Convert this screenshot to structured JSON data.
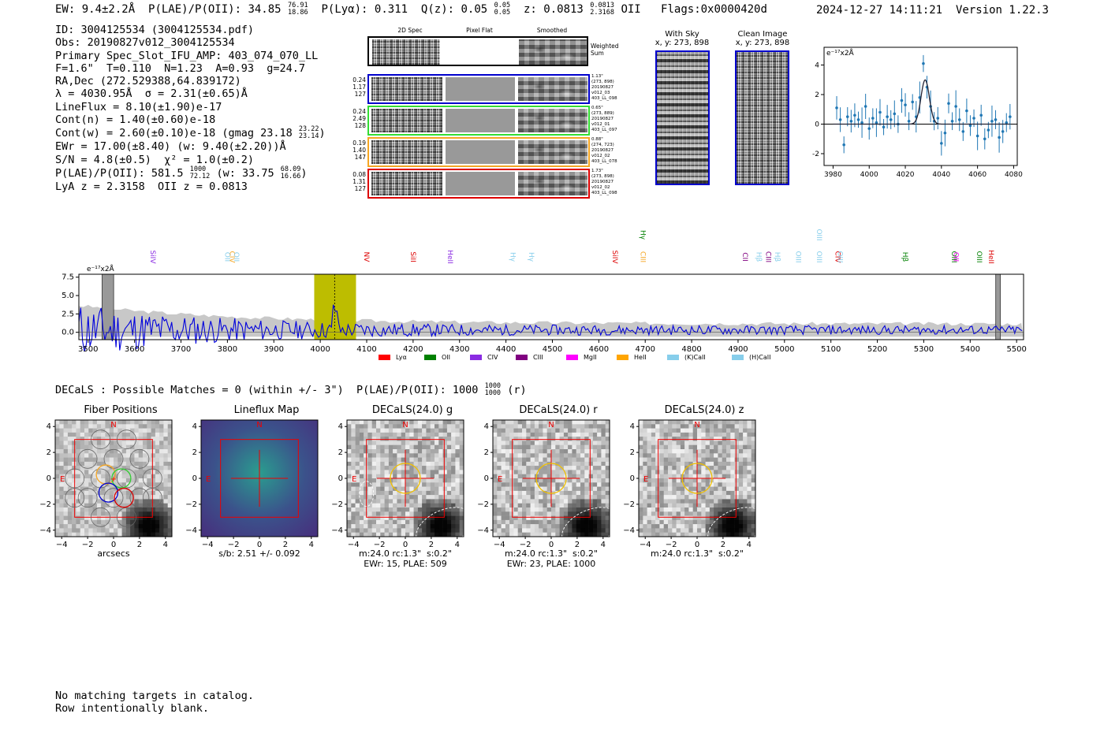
{
  "header": {
    "ew": "EW: 9.4±2.2Å",
    "plae": "P(LAE)/P(OII): 34.85",
    "plae_hi": "76.91",
    "plae_lo": "18.86",
    "plya": "P(Lyα): 0.311",
    "q": "Q(z): 0.05",
    "q_hi": "0.05",
    "q_lo": "0.05",
    "z": "z: 0.0813",
    "z_hi": "0.0813",
    "z_lo": "2.3168",
    "z_line": "OII",
    "flags": "Flags:0x0000420d",
    "datetime": "2024-12-27 14:11:21",
    "version": "Version 1.22.3"
  },
  "info": {
    "id": "ID: 3004125534 (3004125534.pdf)",
    "obs": "Obs: 20190827v012_3004125534",
    "primary": "Primary Spec_Slot_IFU_AMP: 403_074_070_LL",
    "params": "F=1.6\"  T=0.110  N=1.23  A=0.93  g=24.7",
    "radec": "RA,Dec (272.529388,64.839172)",
    "lambda": "λ = 4030.95Å  σ = 2.31(±0.65)Å",
    "lineflux": "LineFlux = 8.10(±1.90)e-17",
    "contn": "Cont(n) = 1.40(±0.60)e-18",
    "contw": "Cont(w) = 2.60(±0.10)e-18 (gmag 23.18",
    "contw_hi": "23.22",
    "contw_lo": "23.14",
    "ewr": "EWr = 17.00(±8.40) (w: 9.40(±2.20))Å",
    "sn": "S/N = 4.8(±0.5)  χ² = 1.0(±0.2)",
    "plae": "P(LAE)/P(OII): 581.5",
    "plae_hi": "1000",
    "plae_lo": "72.12",
    "plae_w": "(w: 33.75",
    "plae_w_hi": "68.09",
    "plae_w_lo": "16.66",
    "lya": "LyA z = 2.3158  OII z = 0.0813"
  },
  "cutouts": {
    "col_2d": "2D Spec",
    "col_flat": "Pixel Flat",
    "col_smooth": "Smoothed",
    "weighted_sum": "Weighted\nSum",
    "rows": [
      {
        "color": "#0000cc",
        "vals": "0.24\n1.17\n127",
        "info": "1.13\"\n(273, 898)\n20190827\nv012_03\n403_LL_098"
      },
      {
        "color": "#33dd33",
        "vals": "0.24\n2.49\n128",
        "info": "0.65\"\n(273, 889)\n20190827\nv012_01\n403_LL_097"
      },
      {
        "color": "#f5a623",
        "vals": "0.19\n1.40\n147",
        "info": "0.88\"\n(274, 723)\n20190827\nv012_02\n403_LL_078"
      },
      {
        "color": "#dd0000",
        "vals": "0.08\n1.31\n127",
        "info": "1.73\"\n(273, 898)\n20190827\nv012_02\n403_LL_098"
      }
    ],
    "with_sky": "With Sky",
    "with_sky_xy": "x, y: 273, 898",
    "clean": "Clean Image",
    "clean_xy": "x, y: 273, 898"
  },
  "chart_data": [
    {
      "type": "scatter",
      "ylabel_units": "e⁻¹⁷x2Å",
      "xlim": [
        3975,
        4082
      ],
      "ylim": [
        -2.8,
        5.2
      ],
      "xticks": [
        3980,
        4000,
        4020,
        4040,
        4060,
        4080
      ],
      "yticks": [
        -2,
        0,
        2,
        4
      ],
      "x": [
        3982,
        3984,
        3986,
        3988,
        3990,
        3992,
        3994,
        3996,
        3998,
        4000,
        4002,
        4004,
        4006,
        4008,
        4010,
        4012,
        4014,
        4016,
        4018,
        4020,
        4022,
        4024,
        4026,
        4028,
        4030,
        4032,
        4034,
        4036,
        4038,
        4040,
        4042,
        4044,
        4046,
        4048,
        4050,
        4052,
        4054,
        4056,
        4058,
        4060,
        4062,
        4064,
        4066,
        4068,
        4070,
        4072,
        4074,
        4076,
        4078
      ],
      "y": [
        1.1,
        0.3,
        -1.4,
        0.5,
        0.2,
        0.6,
        0.3,
        0.1,
        1.2,
        -0.3,
        0.4,
        0.1,
        0.8,
        -0.2,
        0.5,
        0.3,
        0.7,
        0.0,
        1.6,
        1.3,
        0.2,
        1.5,
        0.5,
        1.8,
        4.1,
        2.5,
        1.2,
        0.2,
        0.4,
        -1.3,
        -0.6,
        1.4,
        0.2,
        1.2,
        0.3,
        -0.5,
        0.9,
        -0.1,
        0.4,
        -0.8,
        0.6,
        -1.0,
        -0.4,
        0.2,
        0.3,
        -0.9,
        -0.5,
        0.1,
        0.5
      ],
      "fit": {
        "center": 4031,
        "sigma": 2.31,
        "amp": 3.0,
        "base": 0.0
      }
    },
    {
      "type": "line",
      "ylabel_units": "e⁻¹⁷x2Å",
      "xlim": [
        3480,
        5515
      ],
      "ylim": [
        -1.0,
        7.9
      ],
      "xticks": [
        3500,
        3600,
        3700,
        3800,
        3900,
        4000,
        4100,
        4200,
        4300,
        4400,
        4500,
        4600,
        4700,
        4800,
        4900,
        5000,
        5100,
        5200,
        5300,
        5400,
        5500
      ],
      "yticks": [
        0.0,
        2.5,
        5.0,
        7.5
      ],
      "highlight_range": [
        3987,
        4077
      ],
      "line_marker": 4030.95,
      "masked_ranges": [
        [
          3530,
          3555
        ],
        [
          5455,
          5465
        ]
      ],
      "line_labels": [
        {
          "x": 3635,
          "label": "SiIV",
          "color": "#8a2be2"
        },
        {
          "x": 3795,
          "label": "OII",
          "color": "#87ceeb"
        },
        {
          "x": 3805,
          "label": "CIV",
          "color": "#f5a623"
        },
        {
          "x": 3815,
          "label": "OII",
          "color": "#87ceeb"
        },
        {
          "x": 4095,
          "label": "NV",
          "color": "#dd0000"
        },
        {
          "x": 4195,
          "label": "SiII",
          "color": "#dd0000"
        },
        {
          "x": 4275,
          "label": "HeII",
          "color": "#8a2be2"
        },
        {
          "x": 4410,
          "label": "Hγ",
          "color": "#87ceeb"
        },
        {
          "x": 4450,
          "label": "Hγ",
          "color": "#87ceeb"
        },
        {
          "x": 4630,
          "label": "SiIV",
          "color": "#dd0000"
        },
        {
          "x": 4690,
          "label": "CIII",
          "color": "#f5a623"
        },
        {
          "x": 4690,
          "label": "Hγ",
          "color": "#008000"
        },
        {
          "x": 4910,
          "label": "CII",
          "color": "#800080"
        },
        {
          "x": 4940,
          "label": "Hβ",
          "color": "#87ceeb"
        },
        {
          "x": 4960,
          "label": "CIII",
          "color": "#800080"
        },
        {
          "x": 4980,
          "label": "Hβ",
          "color": "#87ceeb"
        },
        {
          "x": 5025,
          "label": "OIII",
          "color": "#87ceeb"
        },
        {
          "x": 5070,
          "label": "OIII",
          "color": "#87ceeb"
        },
        {
          "x": 5070,
          "label": "OIII",
          "color": "#87ceeb"
        },
        {
          "x": 5110,
          "label": "CIV",
          "color": "#dd0000"
        },
        {
          "x": 5115,
          "label": "OIII",
          "color": "#87ceeb"
        },
        {
          "x": 5255,
          "label": "Hβ",
          "color": "#008000"
        },
        {
          "x": 5360,
          "label": "OIII",
          "color": "#008000"
        },
        {
          "x": 5365,
          "label": "OII",
          "color": "#ff00ff"
        },
        {
          "x": 5415,
          "label": "OIII",
          "color": "#008000"
        },
        {
          "x": 5440,
          "label": "HeII",
          "color": "#dd0000"
        }
      ],
      "legend": [
        {
          "label": "Lyα",
          "color": "#ff0000"
        },
        {
          "label": "OII",
          "color": "#008000"
        },
        {
          "label": "CIV",
          "color": "#8a2be2"
        },
        {
          "label": "CIII",
          "color": "#800080"
        },
        {
          "label": "MgII",
          "color": "#ff00ff"
        },
        {
          "label": "HeII",
          "color": "#ffa500"
        },
        {
          "label": "(K)CaII",
          "color": "#87ceeb"
        },
        {
          "label": "(H)CaII",
          "color": "#87ceeb"
        }
      ]
    }
  ],
  "matches": {
    "text": "DECaLS : Possible Matches = 0 (within +/- 3\")  P(LAE)/P(OII): 1000",
    "hi": "1000",
    "lo": "1000",
    "suffix": "(r)"
  },
  "panels": [
    {
      "title": "Fiber Positions",
      "caption": "arcsecs",
      "caption2": "",
      "kind": "fiber"
    },
    {
      "title": "Lineflux Map",
      "caption": "s/b: 2.51 +/- 0.092",
      "caption2": "",
      "kind": "flux"
    },
    {
      "title": "DECaLS(24.0) g",
      "caption": "m:24.0 rc:1.3\"  s:0.2\"",
      "caption2": "EWr: 15, PLAE: 509",
      "kind": "decals"
    },
    {
      "title": "DECaLS(24.0) r",
      "caption": "m:24.0 rc:1.3\"  s:0.2\"",
      "caption2": "EWr: 23, PLAE: 1000",
      "kind": "decals"
    },
    {
      "title": "DECaLS(24.0) z",
      "caption": "m:24.0 rc:1.3\"  s:0.2\"",
      "caption2": "",
      "kind": "decals"
    }
  ],
  "panel_axis": {
    "ticks": [
      -4,
      -2,
      0,
      2,
      4
    ],
    "north": "N",
    "east": "E"
  },
  "footer": {
    "line1": "No matching targets in catalog.",
    "line2": "Row intentionally blank."
  }
}
